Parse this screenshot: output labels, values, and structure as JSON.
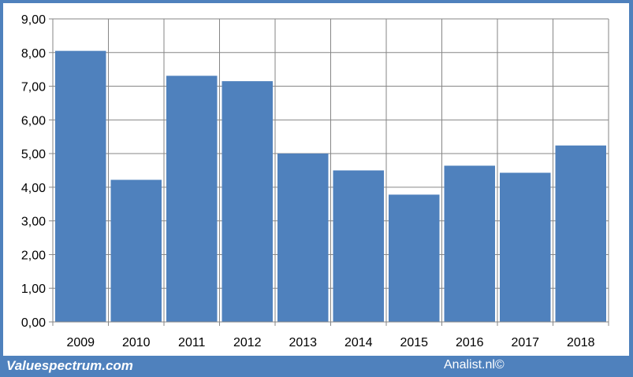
{
  "chart_data": {
    "type": "bar",
    "categories": [
      "2009",
      "2010",
      "2011",
      "2012",
      "2013",
      "2014",
      "2015",
      "2016",
      "2017",
      "2018"
    ],
    "values": [
      8.05,
      4.22,
      7.31,
      7.15,
      5.0,
      4.5,
      3.78,
      4.64,
      4.43,
      5.24
    ],
    "ylim": [
      0,
      9
    ],
    "yticks": [
      "0,00",
      "1,00",
      "2,00",
      "3,00",
      "4,00",
      "5,00",
      "6,00",
      "7,00",
      "8,00",
      "9,00"
    ],
    "grid": true,
    "bar_color": "#4f81bd"
  },
  "footer": {
    "left_text": "Valuespectrum.com",
    "right_text": "Analist.nl©"
  }
}
